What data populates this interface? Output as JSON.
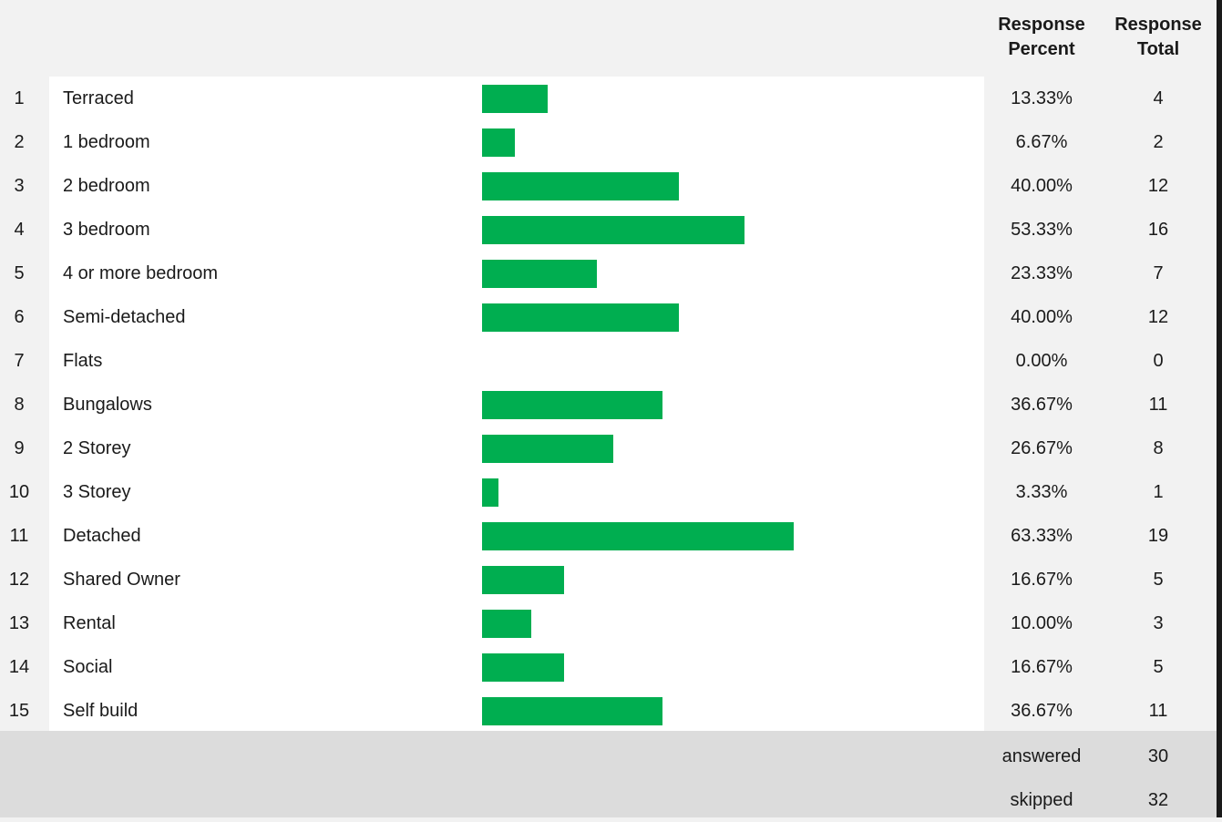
{
  "header": {
    "percent_label_1": "Response",
    "percent_label_2": "Percent",
    "total_label_1": "Response",
    "total_label_2": "Total"
  },
  "chart_data": {
    "type": "bar",
    "orientation": "horizontal",
    "bar_color": "#00ae50",
    "xlim": [
      0,
      100
    ],
    "categories": [
      "Terraced",
      "1 bedroom",
      "2 bedroom",
      "3 bedroom",
      "4 or more bedroom",
      "Semi-detached",
      "Flats",
      "Bungalows",
      "2 Storey",
      "3 Storey",
      "Detached",
      "Shared Owner",
      "Rental",
      "Social",
      "Self build"
    ],
    "values": [
      13.33,
      6.67,
      40.0,
      53.33,
      23.33,
      40.0,
      0.0,
      36.67,
      26.67,
      3.33,
      63.33,
      16.67,
      10.0,
      16.67,
      36.67
    ],
    "rows": [
      {
        "num": "1",
        "label": "Terraced",
        "pct": "13.33%",
        "total": "4"
      },
      {
        "num": "2",
        "label": "1 bedroom",
        "pct": "6.67%",
        "total": "2"
      },
      {
        "num": "3",
        "label": "2 bedroom",
        "pct": "40.00%",
        "total": "12"
      },
      {
        "num": "4",
        "label": "3 bedroom",
        "pct": "53.33%",
        "total": "16"
      },
      {
        "num": "5",
        "label": "4 or more bedroom",
        "pct": "23.33%",
        "total": "7"
      },
      {
        "num": "6",
        "label": "Semi-detached",
        "pct": "40.00%",
        "total": "12"
      },
      {
        "num": "7",
        "label": "Flats",
        "pct": "0.00%",
        "total": "0"
      },
      {
        "num": "8",
        "label": "Bungalows",
        "pct": "36.67%",
        "total": "11"
      },
      {
        "num": "9",
        "label": "2 Storey",
        "pct": "26.67%",
        "total": "8"
      },
      {
        "num": "10",
        "label": "3 Storey",
        "pct": "3.33%",
        "total": "1"
      },
      {
        "num": "11",
        "label": "Detached",
        "pct": "63.33%",
        "total": "19"
      },
      {
        "num": "12",
        "label": "Shared Owner",
        "pct": "16.67%",
        "total": "5"
      },
      {
        "num": "13",
        "label": "Rental",
        "pct": "10.00%",
        "total": "3"
      },
      {
        "num": "14",
        "label": "Social",
        "pct": "16.67%",
        "total": "5"
      },
      {
        "num": "15",
        "label": "Self build",
        "pct": "36.67%",
        "total": "11"
      }
    ]
  },
  "summary": {
    "answered_label": "answered",
    "answered_value": "30",
    "skipped_label": "skipped",
    "skipped_value": "32"
  }
}
